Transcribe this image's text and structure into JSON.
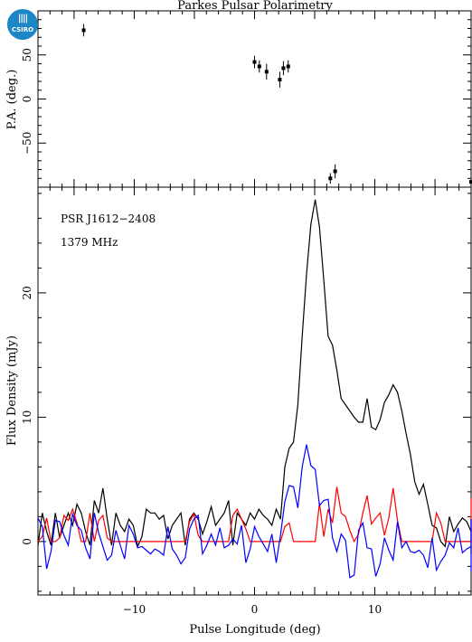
{
  "logo": {
    "text": "CSIRO"
  },
  "chart_data": [
    {
      "type": "scatter",
      "title": "Parkes Pulsar Polarimetry",
      "ylabel": "P.A. (deg.)",
      "xlim": [
        -18,
        18
      ],
      "ylim": [
        -100,
        100
      ],
      "xticks": [
        -10,
        0,
        10
      ],
      "yticks": [
        -50,
        0,
        50
      ],
      "points": [
        {
          "x": -14.2,
          "y": 78,
          "err": 7
        },
        {
          "x": 0.0,
          "y": 42,
          "err": 7
        },
        {
          "x": 0.4,
          "y": 37,
          "err": 7
        },
        {
          "x": 1.0,
          "y": 31,
          "err": 9
        },
        {
          "x": 2.1,
          "y": 22,
          "err": 9
        },
        {
          "x": 2.4,
          "y": 35,
          "err": 8
        },
        {
          "x": 2.8,
          "y": 37,
          "err": 7
        },
        {
          "x": 6.3,
          "y": -90,
          "err": 6
        },
        {
          "x": 6.7,
          "y": -82,
          "err": 8
        },
        {
          "x": 18.0,
          "y": -94,
          "err": 5
        }
      ]
    },
    {
      "type": "line",
      "xlabel": "Pulse Longitude (deg)",
      "ylabel": "Flux Density (mJy)",
      "annotations": [
        "PSR J1612−2408",
        "1379 MHz"
      ],
      "xlim": [
        -18,
        18
      ],
      "ylim": [
        -4.3,
        28.5
      ],
      "xticks": [
        -10,
        0,
        10
      ],
      "yticks": [
        0,
        10,
        20
      ],
      "x_start": -18,
      "x_step": 0.36,
      "series": [
        {
          "color": "#000000",
          "values": [
            -0.3,
            2.3,
            0.8,
            -0.3,
            2.3,
            0.3,
            1.3,
            2.3,
            1.3,
            3.0,
            2.3,
            0.8,
            -0.3,
            3.3,
            2.3,
            4.3,
            1.8,
            -0.3,
            2.3,
            1.3,
            0.8,
            1.8,
            1.3,
            -0.4,
            0.4,
            2.6,
            2.3,
            2.3,
            1.8,
            2.1,
            0.2,
            1.3,
            1.8,
            2.3,
            -0.3,
            1.8,
            2.3,
            1.8,
            0.6,
            1.6,
            2.8,
            1.3,
            1.8,
            2.3,
            3.3,
            -0.3,
            2.3,
            1.8,
            1.3,
            2.3,
            1.8,
            2.6,
            2.1,
            1.8,
            1.3,
            2.6,
            1.8,
            6.0,
            7.5,
            8.0,
            11.0,
            16.5,
            21.5,
            25.5,
            27.5,
            25.3,
            21.0,
            16.5,
            15.8,
            13.8,
            11.5,
            11.0,
            10.5,
            10.0,
            9.6,
            9.6,
            11.5,
            9.2,
            9.0,
            9.8,
            11.2,
            11.8,
            12.6,
            12.0,
            10.5,
            8.7,
            7.0,
            4.8,
            3.8,
            4.6,
            3.0,
            1.3,
            1.1,
            0.0,
            -0.4,
            2.0,
            0.8,
            1.4,
            1.9,
            1.6,
            0.8,
            -0.3,
            0.6,
            -1.0,
            1.6,
            0.4,
            -0.6,
            0.8,
            1.2,
            0.6,
            0.4,
            1.3,
            -1.0,
            -0.3,
            0.8,
            0.3,
            -0.3,
            0.9,
            1.8,
            1.3,
            0.0
          ]
        },
        {
          "color": "#ff0000",
          "values": [
            0.0,
            0.4,
            1.9,
            0.0,
            0.0,
            0.3,
            2.1,
            1.7,
            2.6,
            1.5,
            0.0,
            0.0,
            2.3,
            0.0,
            1.7,
            2.1,
            0.3,
            0.0,
            0.0,
            0.0,
            0.0,
            0.0,
            0.0,
            0.0,
            0.0,
            0.0,
            0.0,
            0.0,
            0.0,
            0.0,
            0.0,
            0.0,
            0.0,
            0.0,
            0.0,
            1.6,
            2.2,
            0.5,
            0.0,
            0.0,
            0.0,
            0.0,
            0.0,
            0.0,
            0.0,
            2.1,
            2.6,
            1.8,
            1.0,
            0.0,
            0.0,
            0.0,
            0.0,
            0.0,
            0.0,
            0.0,
            0.0,
            1.2,
            1.5,
            0.0,
            0.0,
            0.0,
            0.0,
            0.0,
            0.0,
            3.1,
            0.4,
            2.6,
            1.5,
            4.4,
            2.3,
            2.0,
            0.9,
            0.0,
            0.6,
            2.3,
            3.7,
            1.4,
            1.9,
            2.3,
            0.5,
            1.9,
            4.3,
            1.7,
            0.0,
            0.0,
            0.0,
            0.0,
            0.0,
            0.0,
            0.0,
            0.0,
            2.3,
            1.5,
            0.0,
            0.0,
            0.0,
            0.0,
            0.0,
            0.0,
            0.0,
            0.0,
            2.0,
            2.6,
            0.5,
            0.0,
            0.0,
            0.0,
            0.0,
            0.0,
            0.0,
            0.0,
            0.0,
            1.3,
            2.7,
            3.5,
            0.0,
            3.1,
            0.0,
            3.3,
            0.0
          ]
        },
        {
          "color": "#0000ff",
          "values": [
            1.9,
            1.2,
            -2.2,
            -0.8,
            1.7,
            1.6,
            0.5,
            -0.3,
            2.2,
            1.3,
            0.9,
            -0.5,
            -1.4,
            2.3,
            0.7,
            -0.4,
            -1.5,
            -1.1,
            0.9,
            -0.3,
            -1.4,
            1.3,
            0.6,
            -0.5,
            -0.4,
            -0.7,
            -1.0,
            -0.6,
            -0.8,
            -1.1,
            1.2,
            -0.6,
            -1.1,
            -1.8,
            -1.3,
            1.0,
            1.8,
            2.1,
            -1.0,
            -0.3,
            0.6,
            -0.3,
            1.1,
            -0.5,
            -0.3,
            0.2,
            -0.2,
            1.3,
            -1.7,
            -0.6,
            1.2,
            0.4,
            -0.2,
            -0.8,
            0.6,
            -1.7,
            0.5,
            3.2,
            4.5,
            4.4,
            2.7,
            6.0,
            7.8,
            6.1,
            5.8,
            2.9,
            3.3,
            3.4,
            0.3,
            -0.8,
            0.6,
            0.1,
            -2.9,
            -2.7,
            0.9,
            1.5,
            -0.5,
            -0.6,
            -2.8,
            -1.8,
            0.3,
            -0.7,
            -1.5,
            1.6,
            -0.5,
            0.0,
            -0.8,
            -0.9,
            -0.7,
            -1.1,
            -2.1,
            0.3,
            -2.3,
            -1.6,
            -1.1,
            -0.1,
            -0.5,
            1.1,
            -0.9,
            -0.6,
            -0.4,
            0.5,
            -0.6,
            -0.3,
            0.4,
            -0.7,
            -0.5,
            -2.4,
            -1.8,
            -0.6,
            -0.3,
            -1.4,
            0.5,
            -0.7,
            0.6,
            -0.5,
            -0.1,
            1.8,
            -0.1,
            -0.5,
            1.6
          ]
        }
      ]
    }
  ]
}
